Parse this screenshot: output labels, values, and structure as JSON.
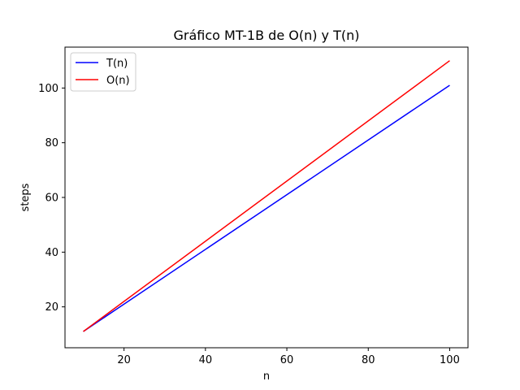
{
  "chart_data": {
    "type": "line",
    "title": "Gráfico MT-1B de O(n) y T(n)",
    "xlabel": "n",
    "ylabel": "steps",
    "xlim": [
      5.5,
      104.5
    ],
    "ylim": [
      5.05,
      114.95
    ],
    "xticks": [
      20,
      40,
      60,
      80,
      100
    ],
    "yticks": [
      20,
      40,
      60,
      80,
      100
    ],
    "grid": false,
    "legend_position": "top-left",
    "x": [
      10,
      100
    ],
    "series": [
      {
        "name": "T(n)",
        "color": "#0000ff",
        "values": [
          11,
          101
        ]
      },
      {
        "name": "O(n)",
        "color": "#ff0000",
        "values": [
          11,
          110
        ]
      }
    ]
  }
}
